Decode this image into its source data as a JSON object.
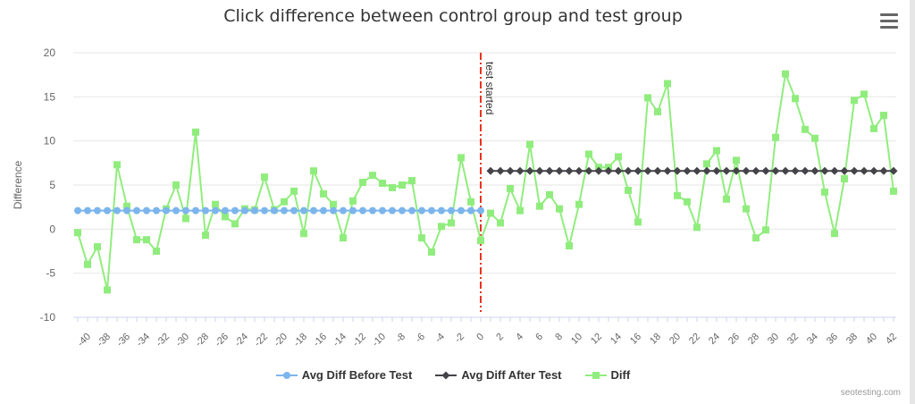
{
  "chart_data": {
    "type": "line",
    "title": "Click difference between control group and test group",
    "ylabel": "Difference",
    "xlabel": "",
    "ylim": [
      -10,
      20
    ],
    "yticks": [
      -10,
      -5,
      0,
      5,
      10,
      15,
      20
    ],
    "xlim": [
      -41,
      42
    ],
    "xticks": [
      -40,
      -38,
      -36,
      -34,
      -32,
      -30,
      -28,
      -26,
      -24,
      -22,
      -20,
      -18,
      -16,
      -14,
      -12,
      -10,
      -8,
      -6,
      -4,
      -2,
      0,
      2,
      4,
      6,
      8,
      10,
      12,
      14,
      16,
      18,
      20,
      22,
      24,
      26,
      28,
      30,
      32,
      34,
      36,
      38,
      40,
      42
    ],
    "grid": true,
    "legend_position": "bottom",
    "annotation": {
      "x": 0,
      "label": "test started",
      "color": "#e8331f"
    },
    "series": [
      {
        "name": "Avg Diff Before Test",
        "color": "#7cb5ec",
        "marker": "circle",
        "x_start": -41,
        "x_end": 0,
        "value": 2.1
      },
      {
        "name": "Avg Diff After Test",
        "color": "#434348",
        "marker": "diamond",
        "x_start": 1,
        "x_end": 42,
        "value": 6.6
      },
      {
        "name": "Diff",
        "color": "#90ed7d",
        "marker": "square",
        "x_start": -41,
        "values": [
          -0.4,
          -4,
          -2,
          -6.9,
          7.3,
          2.6,
          -1.2,
          -1.2,
          -2.5,
          2.3,
          5,
          1.2,
          11,
          -0.7,
          2.8,
          1.4,
          0.6,
          2.3,
          2.2,
          5.9,
          2.2,
          3.1,
          4.3,
          -0.5,
          6.6,
          4,
          2.8,
          -1,
          3.2,
          5.3,
          6.1,
          5.2,
          4.7,
          5,
          5.5,
          -1,
          -2.6,
          0.3,
          0.7,
          8.1,
          3.1,
          -1.3,
          1.8,
          0.7,
          4.6,
          2.1,
          9.6,
          2.6,
          3.9,
          2.3,
          -1.9,
          2.8,
          8.5,
          7,
          7,
          8.2,
          4.4,
          0.8,
          14.9,
          13.3,
          16.5,
          3.8,
          3.1,
          0.2,
          7.4,
          8.9,
          3.4,
          7.8,
          2.3,
          -1,
          -0.1,
          10.4,
          17.6,
          14.8,
          11.3,
          10.3,
          4.2,
          -0.5,
          5.7,
          14.6,
          15.3,
          11.4,
          12.9,
          4.3
        ]
      }
    ]
  },
  "credit": "seotesting.com",
  "menu_icon": "hamburger-menu-icon"
}
